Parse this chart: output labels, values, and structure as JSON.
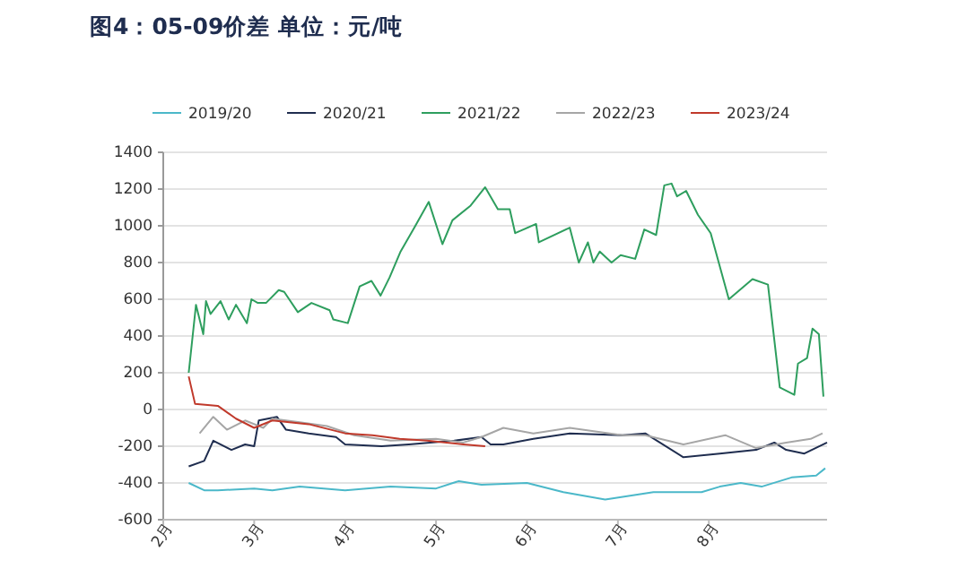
{
  "chart_data": {
    "type": "line",
    "title": "图4：05-09价差  单位：元/吨",
    "xlim": [
      2,
      9.3
    ],
    "xticks": [
      {
        "value": 2,
        "label": "2月"
      },
      {
        "value": 3,
        "label": "3月"
      },
      {
        "value": 4,
        "label": "4月"
      },
      {
        "value": 5,
        "label": "5月"
      },
      {
        "value": 6,
        "label": "6月"
      },
      {
        "value": 7,
        "label": "7月"
      },
      {
        "value": 8,
        "label": "8月"
      }
    ],
    "ylim": [
      -600,
      1400
    ],
    "yticks": [
      -600,
      -400,
      -200,
      0,
      200,
      400,
      600,
      800,
      1000,
      1200,
      1400
    ],
    "grid": "y",
    "legend": "top",
    "marker": "none",
    "line_style": "solid",
    "series": [
      {
        "name": "2019/20",
        "color": "#4bb8c9",
        "x": [
          2.28,
          2.45,
          2.6,
          3.0,
          3.2,
          3.5,
          4.0,
          4.5,
          5.0,
          5.25,
          5.5,
          6.0,
          6.4,
          6.86,
          7.39,
          7.92,
          8.12,
          8.35,
          8.58,
          8.91,
          9.18,
          9.28
        ],
        "values": [
          -400,
          -440,
          -440,
          -430,
          -440,
          -420,
          -440,
          -420,
          -430,
          -390,
          -410,
          -400,
          -450,
          -490,
          -450,
          -450,
          -420,
          -400,
          -420,
          -370,
          -360,
          -320
        ]
      },
      {
        "name": "2020/21",
        "color": "#1f2d4f",
        "x": [
          2.28,
          2.45,
          2.55,
          2.75,
          2.9,
          3.0,
          3.05,
          3.25,
          3.35,
          3.6,
          3.9,
          4.0,
          4.4,
          4.7,
          5.2,
          5.5,
          5.6,
          5.74,
          6.07,
          6.47,
          7.05,
          7.3,
          7.72,
          8.12,
          8.52,
          8.72,
          8.85,
          9.05,
          9.3
        ],
        "values": [
          -310,
          -280,
          -170,
          -220,
          -190,
          -200,
          -60,
          -40,
          -110,
          -130,
          -150,
          -190,
          -200,
          -190,
          -170,
          -150,
          -190,
          -190,
          -160,
          -130,
          -140,
          -130,
          -260,
          -240,
          -220,
          -180,
          -220,
          -240,
          -180
        ]
      },
      {
        "name": "2021/22",
        "color": "#2e9e5e",
        "x": [
          2.28,
          2.36,
          2.44,
          2.47,
          2.52,
          2.63,
          2.72,
          2.8,
          2.92,
          2.97,
          3.04,
          3.13,
          3.27,
          3.33,
          3.48,
          3.63,
          3.83,
          3.87,
          4.03,
          4.16,
          4.29,
          4.39,
          4.49,
          4.61,
          4.75,
          4.92,
          5.07,
          5.18,
          5.38,
          5.54,
          5.68,
          5.81,
          5.87,
          6.1,
          6.13,
          6.47,
          6.57,
          6.67,
          6.73,
          6.8,
          6.93,
          7.03,
          7.19,
          7.29,
          7.42,
          7.51,
          7.59,
          7.65,
          7.75,
          7.88,
          8.02,
          8.22,
          8.48,
          8.65,
          8.78,
          8.94,
          8.98,
          9.08,
          9.14,
          9.21,
          9.26
        ],
        "values": [
          200,
          570,
          410,
          590,
          520,
          590,
          490,
          570,
          470,
          600,
          580,
          580,
          650,
          640,
          530,
          580,
          540,
          490,
          470,
          670,
          700,
          620,
          720,
          860,
          980,
          1130,
          900,
          1030,
          1110,
          1210,
          1090,
          1090,
          960,
          1010,
          910,
          990,
          800,
          910,
          800,
          860,
          800,
          840,
          820,
          980,
          950,
          1220,
          1230,
          1160,
          1190,
          1060,
          960,
          600,
          710,
          680,
          120,
          80,
          250,
          280,
          440,
          410,
          70
        ]
      },
      {
        "name": "2022/23",
        "color": "#a6a6a6",
        "x": [
          2.4,
          2.55,
          2.7,
          2.9,
          3.1,
          3.2,
          3.5,
          3.8,
          4.1,
          4.5,
          5.0,
          5.3,
          5.5,
          5.74,
          6.07,
          6.47,
          7.05,
          7.3,
          7.72,
          8.18,
          8.52,
          8.85,
          9.12,
          9.25
        ],
        "values": [
          -130,
          -40,
          -110,
          -60,
          -100,
          -50,
          -70,
          -90,
          -140,
          -170,
          -160,
          -180,
          -150,
          -100,
          -130,
          -100,
          -140,
          -140,
          -190,
          -140,
          -210,
          -180,
          -160,
          -130
        ]
      },
      {
        "name": "2023/24",
        "color": "#c0392b",
        "x": [
          2.28,
          2.35,
          2.6,
          2.8,
          3.0,
          3.2,
          3.6,
          4.0,
          4.3,
          4.6,
          4.9,
          5.3,
          5.54
        ],
        "values": [
          180,
          30,
          20,
          -50,
          -100,
          -60,
          -80,
          -130,
          -140,
          -160,
          -170,
          -190,
          -200
        ]
      }
    ]
  }
}
